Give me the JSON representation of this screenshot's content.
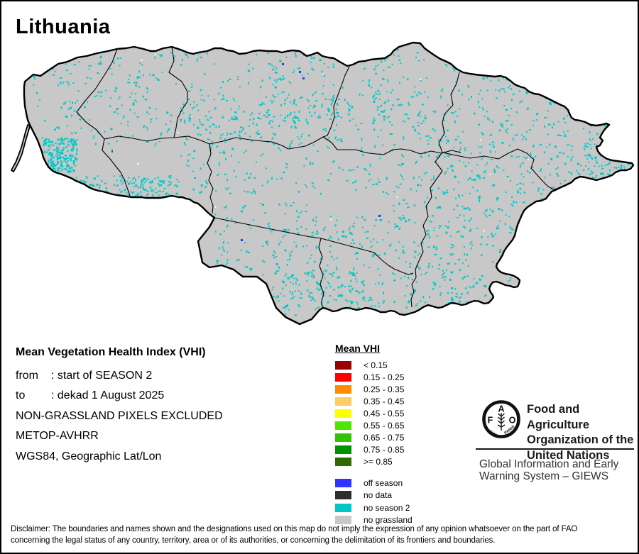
{
  "title": "Lithuania",
  "map": {
    "land_color": "#c8c8c8",
    "border_color": "#000000",
    "speckle_color": "#00c8c8",
    "off_season_color": "#3333ff",
    "no_data_color": "#2e2e2e"
  },
  "info": {
    "heading": "Mean Vegetation Health Index (VHI)",
    "rows": [
      {
        "label": "from",
        "value": ": start of SEASON 2"
      },
      {
        "label": "to",
        "value": ": dekad 1 August 2025"
      },
      {
        "label": "",
        "value": "NON-GRASSLAND PIXELS EXCLUDED"
      },
      {
        "label": "",
        "value": "METOP-AVHRR"
      },
      {
        "label": "",
        "value": "WGS84, Geographic Lat/Lon"
      }
    ]
  },
  "legend": {
    "title": "Mean VHI",
    "classes": [
      {
        "label": "< 0.15",
        "color": "#9b0000"
      },
      {
        "label": "0.15 - 0.25",
        "color": "#ff0000"
      },
      {
        "label": "0.25 - 0.35",
        "color": "#ff8c00"
      },
      {
        "label": "0.35 - 0.45",
        "color": "#ffcc66"
      },
      {
        "label": "0.45 - 0.55",
        "color": "#ffff00"
      },
      {
        "label": "0.55 - 0.65",
        "color": "#4ce600"
      },
      {
        "label": "0.65 - 0.75",
        "color": "#2fc300"
      },
      {
        "label": "0.75 - 0.85",
        "color": "#009300"
      },
      {
        "label": ">= 0.85",
        "color": "#2d6a00"
      }
    ],
    "extra": [
      {
        "label": "off season",
        "color": "#3333ff"
      },
      {
        "label": "no data",
        "color": "#2e2e2e"
      },
      {
        "label": "no season 2",
        "color": "#00c8c8"
      },
      {
        "label": "no grassland",
        "color": "#c8c8c8"
      }
    ]
  },
  "org": {
    "logo_letters": "FAO",
    "logo_motto_left": "FIAT",
    "logo_motto_right": "PANIS",
    "name_lines": [
      "Food and Agriculture",
      "Organization of the",
      "United Nations"
    ],
    "giews_lines": [
      "Global Information and Early",
      "Warning System – GIEWS"
    ]
  },
  "disclaimer": {
    "lines": [
      "Disclaimer: The boundaries and names shown and the designations used on this map do not imply the expression of any opinion whatsoever on the part of FAO",
      "concerning the legal status of any country, territory, area or of its authorities, or concerning the delimitation of its frontiers and boundaries."
    ]
  }
}
